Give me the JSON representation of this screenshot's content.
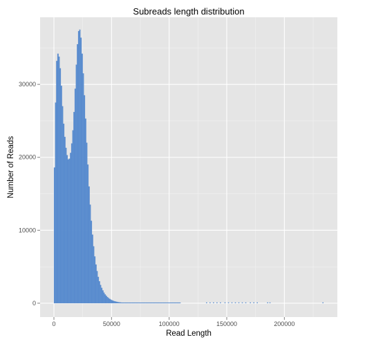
{
  "chart_data": {
    "type": "bar",
    "title": "Subreads length distribution",
    "xlabel": "Read Length",
    "ylabel": "Number of Reads",
    "xlim": [
      -12000,
      246000
    ],
    "ylim": [
      -1900,
      39200
    ],
    "x_ticks": [
      0,
      50000,
      100000,
      150000,
      200000
    ],
    "x_tick_labels": [
      "0",
      "50000",
      "100000",
      "150000",
      "200000"
    ],
    "y_ticks": [
      0,
      10000,
      20000,
      30000
    ],
    "y_tick_labels": [
      "0",
      "10000",
      "20000",
      "30000"
    ],
    "grid": true,
    "legend": "none",
    "bar_color": "#5b8ed0",
    "panel_background": "#e5e5e5",
    "bins": {
      "width": 1000,
      "start": 0,
      "values": [
        18600,
        27500,
        33200,
        34200,
        33800,
        32200,
        29800,
        27000,
        24600,
        22800,
        21300,
        20300,
        19700,
        19800,
        20600,
        21900,
        23700,
        26200,
        29400,
        32700,
        35500,
        37300,
        37500,
        36400,
        34200,
        31500,
        28500,
        25300,
        22000,
        19000,
        16000,
        13500,
        11300,
        9400,
        7800,
        6400,
        5300,
        4400,
        3600,
        3000,
        2500,
        2100,
        1750,
        1450,
        1200,
        1000,
        840,
        700,
        580,
        480,
        400,
        330,
        275,
        230,
        190,
        158,
        130,
        108,
        90,
        75,
        62,
        52,
        43,
        36,
        30,
        25,
        21,
        18,
        15,
        13,
        11,
        9,
        8,
        7,
        6,
        5,
        5,
        4,
        4,
        3,
        3,
        3,
        2,
        2,
        2,
        2,
        2,
        1,
        1,
        1,
        1,
        1,
        1,
        1,
        1,
        1,
        1,
        1,
        1,
        1,
        1,
        1,
        1,
        1,
        1,
        1,
        1,
        1,
        1,
        1
      ]
    },
    "outlier_bins": [
      {
        "x": 132000,
        "value": 1
      },
      {
        "x": 135000,
        "value": 1
      },
      {
        "x": 138000,
        "value": 1
      },
      {
        "x": 141000,
        "value": 1
      },
      {
        "x": 144000,
        "value": 1
      },
      {
        "x": 148000,
        "value": 1
      },
      {
        "x": 151000,
        "value": 1
      },
      {
        "x": 154000,
        "value": 1
      },
      {
        "x": 157000,
        "value": 1
      },
      {
        "x": 160000,
        "value": 1
      },
      {
        "x": 163000,
        "value": 1
      },
      {
        "x": 166000,
        "value": 1
      },
      {
        "x": 170000,
        "value": 1
      },
      {
        "x": 173000,
        "value": 1
      },
      {
        "x": 176000,
        "value": 1
      },
      {
        "x": 185000,
        "value": 1
      },
      {
        "x": 187000,
        "value": 1
      },
      {
        "x": 233000,
        "value": 1
      }
    ]
  }
}
